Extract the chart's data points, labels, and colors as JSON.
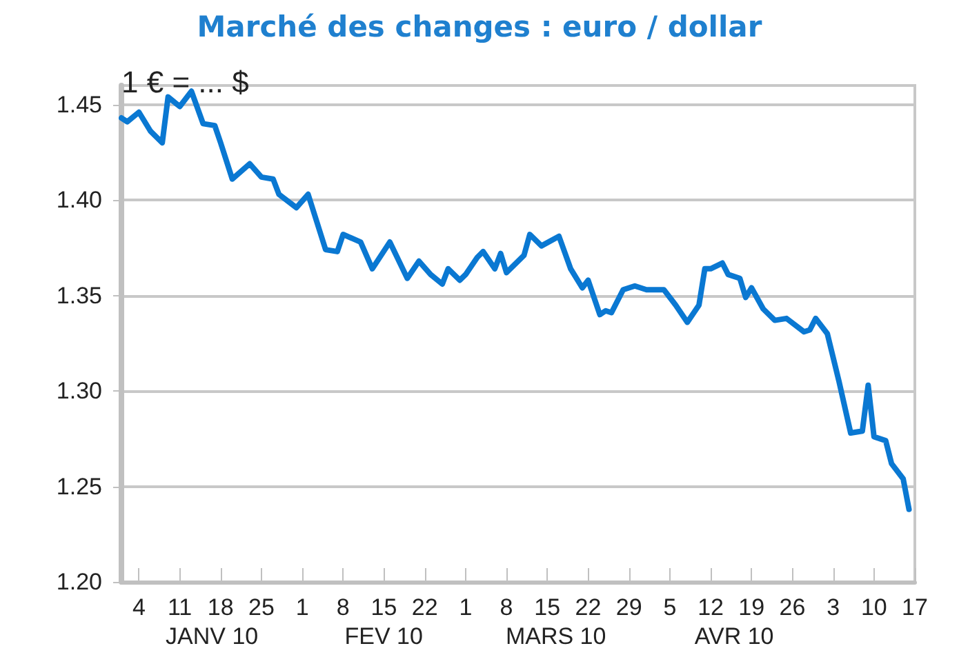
{
  "chart_data": {
    "type": "line",
    "title": "Marché des changes : euro / dollar",
    "x": [
      "--01-01",
      "--01-02",
      "--01-04",
      "--01-06",
      "--01-08",
      "--01-09",
      "--01-11",
      "--01-13",
      "--01-15",
      "--01-17",
      "--01-18",
      "--01-20",
      "--01-23",
      "--01-25",
      "--01-27",
      "--01-28",
      "--01-31",
      "--02-02",
      "--02-05",
      "--02-07",
      "--02-08",
      "--02-11",
      "--02-13",
      "--02-16",
      "--02-19",
      "--02-21",
      "--02-23",
      "--02-25",
      "--02-26",
      "--02-28",
      "--03-01",
      "--03-03",
      "--03-04",
      "--03-06",
      "--03-07",
      "--03-08",
      "--03-11",
      "--03-12",
      "--03-14",
      "--03-17",
      "--03-19",
      "--03-21",
      "--03-22",
      "--03-24",
      "--03-25",
      "--03-26",
      "--03-28",
      "--03-30",
      "--04-01",
      "--04-04",
      "--04-06",
      "--04-08",
      "--04-10",
      "--04-11",
      "--04-12",
      "--04-14",
      "--04-15",
      "--04-17",
      "--04-18",
      "--04-19",
      "--04-21",
      "--04-23",
      "--04-25",
      "--04-28",
      "--04-29",
      "--04-30",
      "--05-02",
      "--05-04",
      "--05-06",
      "--05-08",
      "--05-09",
      "--05-10",
      "--05-12",
      "--05-13",
      "--05-15",
      "--05-16"
    ],
    "series": [
      {
        "color": "#0a78d2",
        "values": [
          1.443,
          1.441,
          1.446,
          1.436,
          1.43,
          1.454,
          1.449,
          1.457,
          1.44,
          1.439,
          1.43,
          1.411,
          1.419,
          1.412,
          1.411,
          1.403,
          1.396,
          1.403,
          1.374,
          1.373,
          1.382,
          1.378,
          1.364,
          1.378,
          1.359,
          1.368,
          1.361,
          1.356,
          1.364,
          1.358,
          1.361,
          1.37,
          1.373,
          1.364,
          1.372,
          1.362,
          1.371,
          1.382,
          1.376,
          1.381,
          1.364,
          1.354,
          1.358,
          1.34,
          1.342,
          1.341,
          1.353,
          1.355,
          1.353,
          1.353,
          1.345,
          1.336,
          1.345,
          1.364,
          1.364,
          1.367,
          1.361,
          1.359,
          1.349,
          1.354,
          1.343,
          1.337,
          1.338,
          1.331,
          1.332,
          1.338,
          1.33,
          1.305,
          1.278,
          1.279,
          1.303,
          1.276,
          1.274,
          1.262,
          1.254,
          1.238
        ]
      }
    ],
    "xlim": [
      "--01-01",
      "--05-17"
    ],
    "xticks": [
      {
        "value": "--01-04",
        "label": "4"
      },
      {
        "value": "--01-11",
        "label": "11"
      },
      {
        "value": "--01-18",
        "label": "18"
      },
      {
        "value": "--01-25",
        "label": "25"
      },
      {
        "value": "--02-01",
        "label": "1"
      },
      {
        "value": "--02-08",
        "label": "8"
      },
      {
        "value": "--02-15",
        "label": "15"
      },
      {
        "value": "--02-22",
        "label": "22"
      },
      {
        "value": "--03-01",
        "label": "1"
      },
      {
        "value": "--03-08",
        "label": "8"
      },
      {
        "value": "--03-15",
        "label": "15"
      },
      {
        "value": "--03-22",
        "label": "22"
      },
      {
        "value": "--03-29",
        "label": "29"
      },
      {
        "value": "--04-05",
        "label": "5"
      },
      {
        "value": "--04-12",
        "label": "12"
      },
      {
        "value": "--04-19",
        "label": "19"
      },
      {
        "value": "--04-26",
        "label": "26"
      },
      {
        "value": "--05-03",
        "label": "3"
      },
      {
        "value": "--05-10",
        "label": "10"
      },
      {
        "value": "--05-17",
        "label": "17"
      }
    ],
    "ylim": [
      1.2,
      1.46
    ],
    "yticks": [
      {
        "value": 1.2,
        "label": "1.20"
      },
      {
        "value": 1.25,
        "label": "1.25"
      },
      {
        "value": 1.3,
        "label": "1.30"
      },
      {
        "value": 1.35,
        "label": "1.35"
      },
      {
        "value": 1.4,
        "label": "1.40"
      },
      {
        "value": 1.45,
        "label": "1.45"
      }
    ],
    "grid": "y",
    "marker": "none",
    "line_style": "solid",
    "annotations": [
      "1 € = ... $",
      "JANV 10",
      "FEV 10",
      "MARS 10",
      "AVR 10"
    ]
  }
}
